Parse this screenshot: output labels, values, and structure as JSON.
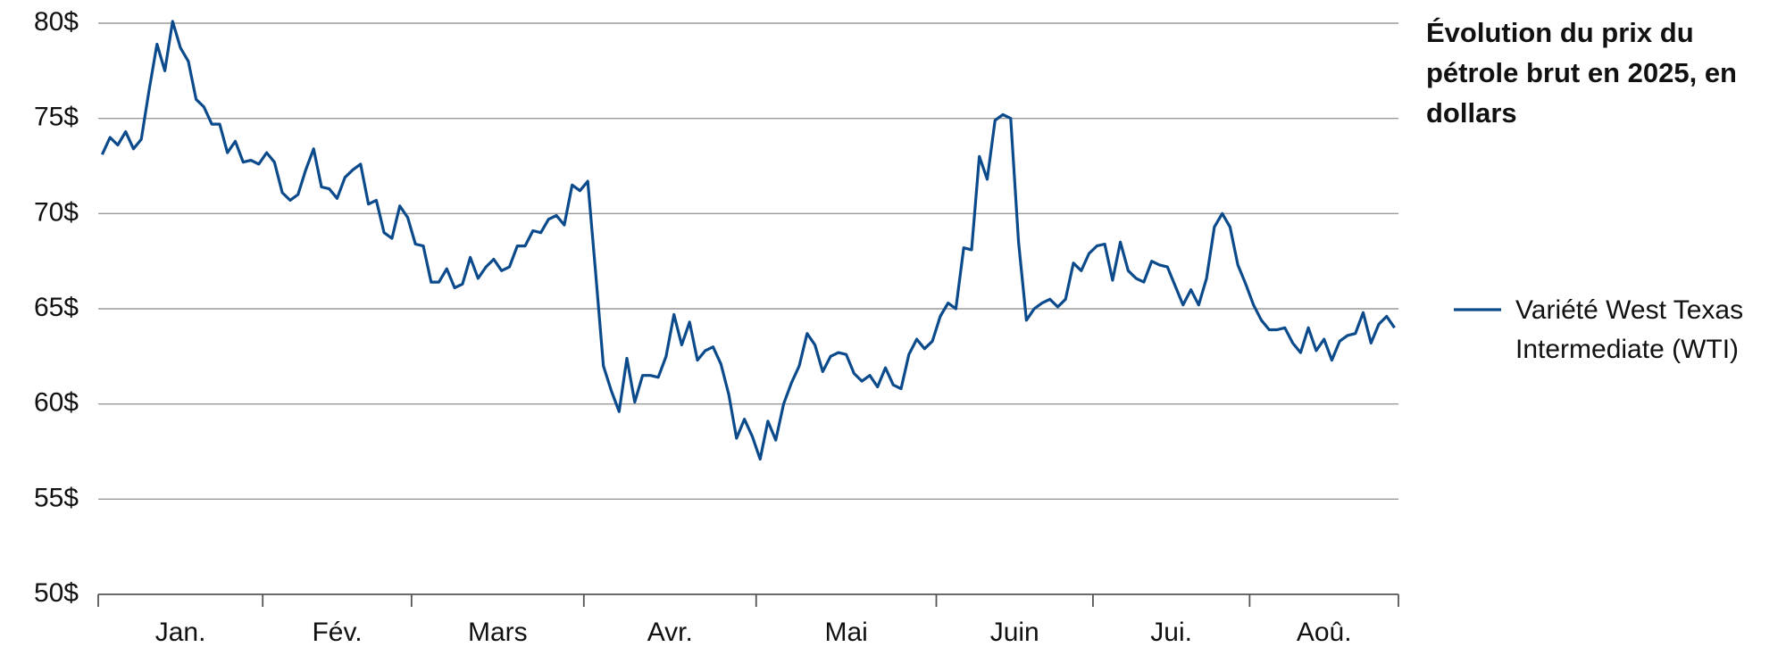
{
  "chart_data": {
    "type": "line",
    "title": "Évolution du prix du pétrole brut en 2025, en dollars",
    "categories": [
      "Jan.",
      "Fév.",
      "Mars",
      "Avr.",
      "Mai",
      "Juin",
      "Jui.",
      "Aoû."
    ],
    "series": [
      {
        "name": "Variété West Texas Intermediate (WTI)",
        "color": "#0b4a8b",
        "values": [
          [
            73.1,
            74.0,
            73.6,
            74.3,
            73.4,
            73.9,
            76.5,
            78.9,
            77.5,
            80.1,
            78.7,
            78.0,
            76.0,
            75.6,
            74.7,
            74.7,
            73.2,
            73.8,
            72.7,
            72.8,
            72.6
          ],
          [
            73.2,
            72.7,
            71.1,
            70.7,
            71.0,
            72.3,
            73.4,
            71.4,
            71.3,
            70.8,
            71.9,
            72.3,
            72.6,
            70.5,
            70.7,
            69.0,
            68.7,
            70.4,
            69.8
          ],
          [
            68.4,
            68.3,
            66.4,
            66.4,
            67.1,
            66.1,
            66.3,
            67.7,
            66.6,
            67.2,
            67.6,
            67.0,
            67.2,
            68.3,
            68.3,
            69.1,
            69.0,
            69.7,
            69.9,
            69.4,
            71.5,
            71.2
          ],
          [
            71.7,
            66.9,
            62.0,
            60.7,
            59.6,
            62.4,
            60.1,
            61.5,
            61.5,
            61.4,
            62.5,
            64.7,
            63.1,
            64.3,
            62.3,
            62.8,
            63.0,
            62.1,
            60.5,
            58.2,
            59.2,
            58.3
          ],
          [
            57.1,
            59.1,
            58.1,
            60.0,
            61.1,
            62.0,
            63.7,
            63.1,
            61.7,
            62.5,
            62.7,
            62.6,
            61.6,
            61.2,
            61.5,
            60.9,
            61.9,
            61.0,
            60.8,
            62.6,
            63.4,
            62.9,
            63.3
          ],
          [
            64.6,
            65.3,
            65.0,
            68.2,
            68.1,
            73.0,
            71.8,
            74.9,
            75.2,
            75.0,
            68.5,
            64.4,
            65.0,
            65.3,
            65.5,
            65.1,
            65.5,
            67.4,
            67.0,
            67.9
          ],
          [
            68.3,
            68.4,
            66.5,
            68.5,
            67.0,
            66.6,
            66.4,
            67.5,
            67.3,
            67.2,
            66.2,
            65.2,
            66.0,
            65.2,
            66.6,
            69.3,
            70.0,
            69.3,
            67.3,
            66.3
          ],
          [
            65.2,
            64.4,
            63.9,
            63.9,
            64.0,
            63.2,
            62.7,
            64.0,
            62.8,
            63.4,
            62.3,
            63.3,
            63.6,
            63.7,
            64.8,
            63.2,
            64.2,
            64.6,
            64.0
          ]
        ]
      }
    ],
    "ylim": [
      50,
      80
    ],
    "yticks": [
      {
        "value": 50,
        "label": "50$"
      },
      {
        "value": 55,
        "label": "55$"
      },
      {
        "value": 60,
        "label": "60$"
      },
      {
        "value": 65,
        "label": "65$"
      },
      {
        "value": 70,
        "label": "70$"
      },
      {
        "value": 75,
        "label": "75$"
      },
      {
        "value": 80,
        "label": "80$"
      }
    ],
    "grid": true
  }
}
